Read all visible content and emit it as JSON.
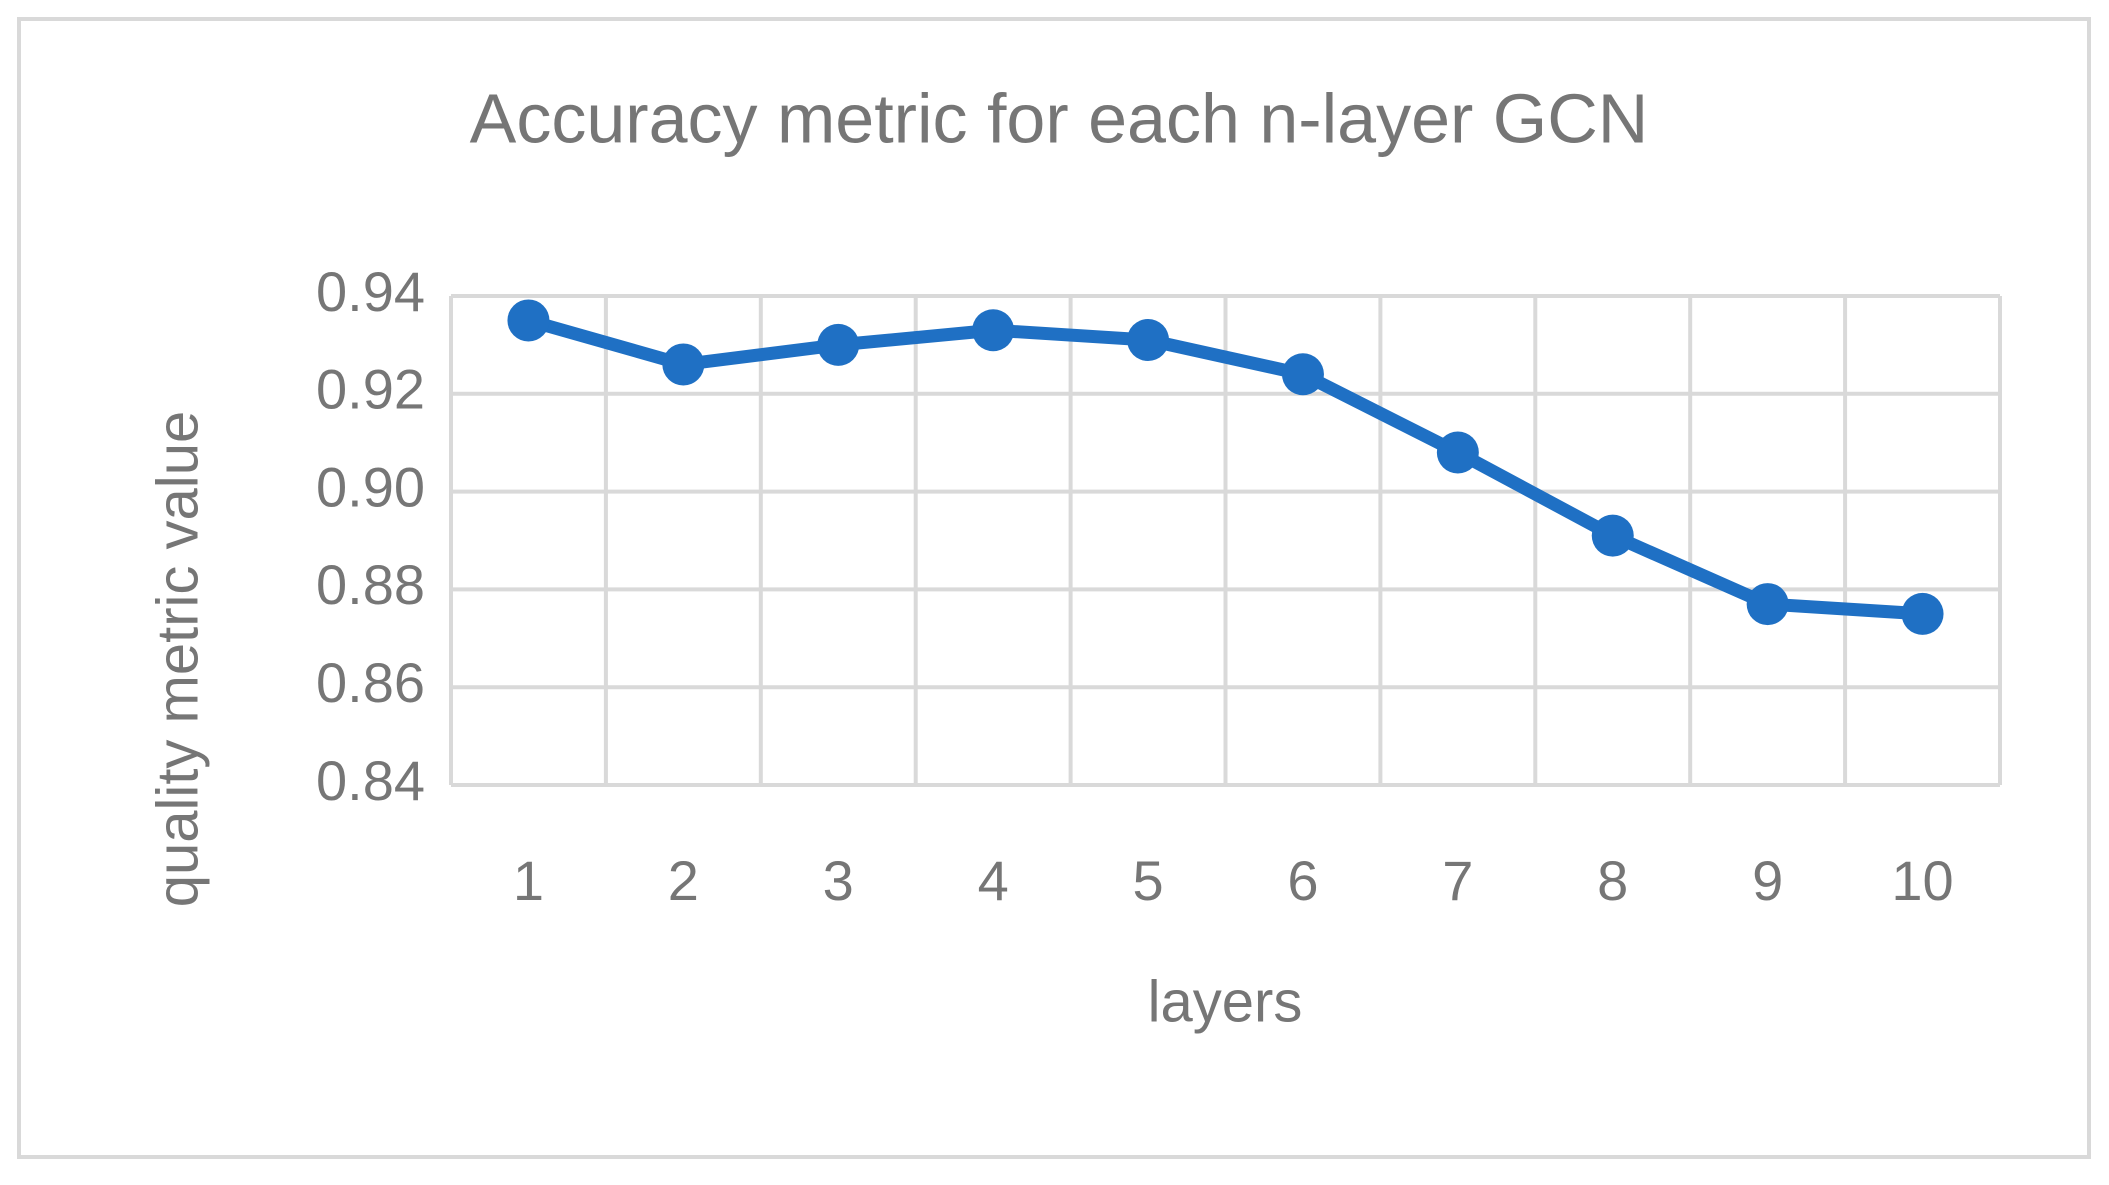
{
  "chart_data": {
    "type": "line",
    "title": "Accuracy metric for each n-layer GCN",
    "x_label": "layers",
    "y_label": "quality metric value",
    "categories": [
      "1",
      "2",
      "3",
      "4",
      "5",
      "6",
      "7",
      "8",
      "9",
      "10"
    ],
    "values": [
      0.935,
      0.926,
      0.93,
      0.933,
      0.931,
      0.924,
      0.908,
      0.891,
      0.877,
      0.875
    ],
    "color": "#1f70c4",
    "ylim": [
      0.84,
      0.94
    ],
    "yticks": [
      0.84,
      0.86,
      0.88,
      {
        "value": 0.9,
        "label": "0.90"
      },
      0.92,
      0.94
    ],
    "grid": true
  }
}
